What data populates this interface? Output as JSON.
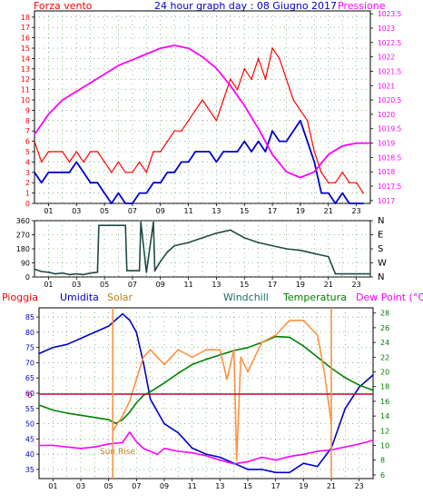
{
  "header": {
    "left_title": "Forza vento",
    "center_title": "24 hour graph day : 08 Giugno 2017",
    "right_title": "Pressione"
  },
  "colors": {
    "red": "#ff0000",
    "blue": "#0000cc",
    "magenta": "#ff00ff",
    "orange": "#ff9040",
    "green": "#008000",
    "darkslate": "#1f4a45",
    "darkred": "#cc0033",
    "gridgreen": "#409040"
  },
  "chart_data": [
    {
      "id": "wind-pressure",
      "type": "line",
      "x_ticks": [
        "01",
        "03",
        "05",
        "07",
        "09",
        "11",
        "13",
        "15",
        "17",
        "19",
        "21",
        "23"
      ],
      "y_left_ticks": [
        "0",
        "1",
        "2",
        "3",
        "4",
        "5",
        "6",
        "7",
        "8",
        "9",
        "10",
        "11",
        "12",
        "13",
        "14",
        "15",
        "16",
        "17",
        "18"
      ],
      "y_right_ticks": [
        "1017",
        "1017.5",
        "1018",
        "1018.5",
        "1019",
        "1019.5",
        "1020",
        "1020.5",
        "1021",
        "1021.5",
        "1022",
        "1022.5",
        "1023",
        "1023.5"
      ],
      "y_left_range": [
        0,
        18.6
      ],
      "y_right_range": [
        1016.9,
        1023.6
      ],
      "series": [
        {
          "name": "Forza vento",
          "axis": "left",
          "color": "#ff0000",
          "x": [
            0,
            0.5,
            1,
            1.5,
            2,
            2.5,
            3,
            3.5,
            4,
            4.5,
            5,
            5.5,
            6,
            6.5,
            7,
            7.5,
            8,
            8.5,
            9,
            9.5,
            10,
            10.5,
            11,
            11.5,
            12,
            12.5,
            13,
            13.5,
            14,
            14.5,
            15,
            15.5,
            16,
            16.5,
            17,
            17.5,
            18,
            18.5,
            19,
            19.5,
            20,
            20.5,
            21,
            21.5,
            22,
            22.5,
            23,
            23.5
          ],
          "values": [
            6,
            4,
            5,
            5,
            5,
            4,
            5,
            4,
            5,
            5,
            4,
            3,
            4,
            3,
            3,
            4,
            3,
            5,
            5,
            6,
            7,
            7,
            8,
            9,
            10,
            9,
            8,
            10,
            12,
            11,
            13,
            12,
            14,
            12,
            15,
            14,
            12,
            10,
            9,
            8,
            5,
            3,
            2,
            2,
            3,
            2,
            2,
            1
          ]
        },
        {
          "name": "",
          "axis": "left",
          "color": "#0000cc",
          "x": [
            0,
            0.5,
            1,
            1.5,
            2,
            2.5,
            3,
            3.5,
            4,
            4.5,
            5,
            5.5,
            6,
            6.5,
            7,
            7.5,
            8,
            8.5,
            9,
            9.5,
            10,
            10.5,
            11,
            11.5,
            12,
            12.5,
            13,
            13.5,
            14,
            14.5,
            15,
            15.5,
            16,
            16.5,
            17,
            17.5,
            18,
            18.5,
            19,
            19.5,
            20,
            20.5,
            21,
            21.5,
            22,
            22.5,
            23,
            23.5
          ],
          "values": [
            3,
            2,
            3,
            3,
            3,
            3,
            4,
            3,
            2,
            2,
            1,
            0,
            1,
            0,
            0,
            1,
            1,
            2,
            2,
            3,
            3,
            4,
            4,
            5,
            5,
            5,
            4,
            5,
            5,
            5,
            6,
            5,
            6,
            5,
            7,
            6,
            6,
            7,
            8,
            6,
            4,
            1,
            1,
            0,
            1,
            0,
            0,
            0
          ]
        },
        {
          "name": "Pressione",
          "axis": "right",
          "color": "#ff00ff",
          "x": [
            0,
            1,
            2,
            3,
            4,
            5,
            6,
            7,
            8,
            9,
            10,
            11,
            12,
            13,
            14,
            15,
            16,
            17,
            18,
            19,
            20,
            21,
            22,
            23,
            24
          ],
          "values": [
            1019.3,
            1020.0,
            1020.5,
            1020.8,
            1021.1,
            1021.4,
            1021.7,
            1021.9,
            1022.1,
            1022.3,
            1022.4,
            1022.3,
            1022.0,
            1021.6,
            1021.0,
            1020.3,
            1019.5,
            1018.6,
            1018.0,
            1017.8,
            1018.0,
            1018.6,
            1018.9,
            1019.0,
            1019.0
          ]
        }
      ]
    },
    {
      "id": "wind-direction",
      "type": "line",
      "x_ticks": [
        "01",
        "03",
        "05",
        "07",
        "09",
        "11",
        "13",
        "15",
        "17",
        "19",
        "21",
        "23"
      ],
      "y_left_ticks": [
        "0",
        "90",
        "180",
        "270",
        "360"
      ],
      "y_right_ticks": [
        "N",
        "W",
        "S",
        "E",
        "N"
      ],
      "y_range": [
        0,
        360
      ],
      "series": [
        {
          "name": "",
          "color": "#1f4a45",
          "x": [
            0,
            0.5,
            1,
            1.5,
            2,
            2.5,
            3,
            3.5,
            4,
            4.5,
            4.6,
            5,
            6,
            6.5,
            6.6,
            7,
            7.5,
            7.6,
            8,
            8.5,
            8.6,
            9,
            9.5,
            10,
            11,
            12,
            13,
            14,
            15,
            16,
            17,
            18,
            19,
            20,
            21,
            21.5,
            22,
            23,
            24
          ],
          "values": [
            50,
            35,
            30,
            20,
            25,
            15,
            20,
            15,
            25,
            30,
            330,
            330,
            330,
            330,
            40,
            40,
            40,
            350,
            30,
            350,
            40,
            100,
            160,
            200,
            220,
            250,
            280,
            300,
            250,
            220,
            200,
            180,
            170,
            150,
            130,
            20,
            20,
            20,
            20
          ]
        }
      ]
    },
    {
      "id": "weather-multi",
      "type": "line",
      "legend": [
        "Pioggia",
        "Umidita",
        "Solar",
        "Windchill",
        "Temperatura",
        "Dew Point (°C)"
      ],
      "x_ticks": [
        "01",
        "03",
        "05",
        "07",
        "09",
        "11",
        "13",
        "15",
        "17",
        "19",
        "21",
        "23"
      ],
      "y_left_ticks": [
        "35",
        "40",
        "45",
        "50",
        "55",
        "60",
        "65",
        "70",
        "75",
        "80",
        "85"
      ],
      "y_right_ticks": [
        "6",
        "8",
        "10",
        "12",
        "14",
        "16",
        "18",
        "20",
        "22",
        "24",
        "26",
        "28"
      ],
      "y_left_range": [
        32,
        88
      ],
      "y_right_range": [
        5.5,
        28.7
      ],
      "pioggia_zero_label": "0",
      "sun_rise_label": "Sun Rise",
      "sunrise_hour": 5.3,
      "sunset_hour": 21.0,
      "series": [
        {
          "name": "Umidita",
          "axis": "left",
          "color": "#0000cc",
          "x": [
            0,
            1,
            2,
            3,
            4,
            5,
            5.5,
            6,
            6.5,
            7,
            7.5,
            8,
            9,
            10,
            11,
            12,
            13,
            14,
            15,
            16,
            17,
            18,
            19,
            20,
            21,
            22,
            23,
            24
          ],
          "values": [
            73,
            75,
            76,
            78,
            80,
            82,
            84,
            86,
            84,
            80,
            70,
            58,
            50,
            47,
            42,
            40,
            39,
            37,
            35,
            35,
            34,
            34,
            37,
            36,
            42,
            55,
            62,
            66
          ]
        },
        {
          "name": "Temperatura",
          "axis": "right",
          "color": "#008000",
          "x": [
            0,
            1,
            2,
            3,
            4,
            5,
            5.5,
            6,
            6.5,
            7,
            7.5,
            8,
            9,
            10,
            11,
            12,
            13,
            14,
            15,
            16,
            17,
            18,
            19,
            20,
            21,
            22,
            23,
            24
          ],
          "values": [
            15.5,
            14.8,
            14.4,
            14.1,
            13.8,
            13.5,
            13.0,
            13.5,
            14.5,
            15.8,
            16.8,
            17.3,
            18.5,
            19.8,
            21.0,
            21.7,
            22.3,
            22.9,
            23.3,
            24.0,
            24.8,
            24.7,
            23.5,
            22.0,
            20.5,
            19.2,
            18.2,
            17.5
          ]
        },
        {
          "name": "Solar",
          "axis": "right",
          "color": "#ff9040",
          "x": [
            5.3,
            6,
            6.5,
            7,
            7.5,
            8,
            8.5,
            9,
            10,
            11,
            12,
            13,
            13.5,
            14,
            14.2,
            14.5,
            15,
            16,
            17,
            18,
            19,
            20,
            20.5,
            21
          ],
          "values": [
            12,
            14,
            16,
            19,
            22,
            23,
            22,
            21,
            23,
            22,
            23,
            23,
            19,
            23,
            8,
            22,
            20,
            24,
            25,
            27,
            27,
            25,
            20,
            13
          ]
        },
        {
          "name": "Dew Point (°C)",
          "axis": "right",
          "color": "#ff00ff",
          "x": [
            0,
            1,
            2,
            3,
            4,
            5,
            6,
            6.5,
            7,
            7.5,
            8,
            8.5,
            9,
            10,
            11,
            12,
            13,
            14,
            15,
            16,
            17,
            18,
            19,
            20,
            21,
            22,
            23,
            24
          ],
          "values": [
            10,
            10,
            9.8,
            9.6,
            9.8,
            10.2,
            10.4,
            11.8,
            10.5,
            9.6,
            9.2,
            8.8,
            9.6,
            9.2,
            9.0,
            8.6,
            8.0,
            7.5,
            7.8,
            8.4,
            8.0,
            8.5,
            8.8,
            9.2,
            9.4,
            9.8,
            10.2,
            10.7
          ]
        }
      ]
    }
  ]
}
